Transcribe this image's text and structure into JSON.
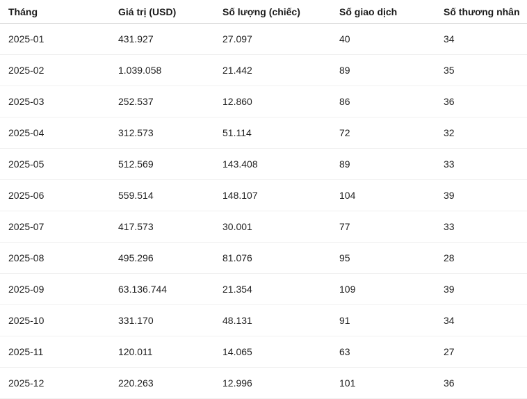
{
  "chart_data": {
    "type": "table",
    "columns": [
      "Tháng",
      "Giá trị (USD)",
      "Số lượng (chiếc)",
      "Số giao dịch",
      "Số thương nhân"
    ],
    "rows": [
      [
        "2025-01",
        "431.927",
        "27.097",
        "40",
        "34"
      ],
      [
        "2025-02",
        "1.039.058",
        "21.442",
        "89",
        "35"
      ],
      [
        "2025-03",
        "252.537",
        "12.860",
        "86",
        "36"
      ],
      [
        "2025-04",
        "312.573",
        "51.114",
        "72",
        "32"
      ],
      [
        "2025-05",
        "512.569",
        "143.408",
        "89",
        "33"
      ],
      [
        "2025-06",
        "559.514",
        "148.107",
        "104",
        "39"
      ],
      [
        "2025-07",
        "417.573",
        "30.001",
        "77",
        "33"
      ],
      [
        "2025-08",
        "495.296",
        "81.076",
        "95",
        "28"
      ],
      [
        "2025-09",
        "63.136.744",
        "21.354",
        "109",
        "39"
      ],
      [
        "2025-10",
        "331.170",
        "48.131",
        "91",
        "34"
      ],
      [
        "2025-11",
        "120.011",
        "14.065",
        "63",
        "27"
      ],
      [
        "2025-12",
        "220.263",
        "12.996",
        "101",
        "36"
      ]
    ]
  },
  "colors": {
    "background": "#ffffff",
    "header_text": "#1a1a1a",
    "cell_text": "#212121",
    "header_divider": "#d4d4d4",
    "row_divider": "#f0f0f0"
  }
}
